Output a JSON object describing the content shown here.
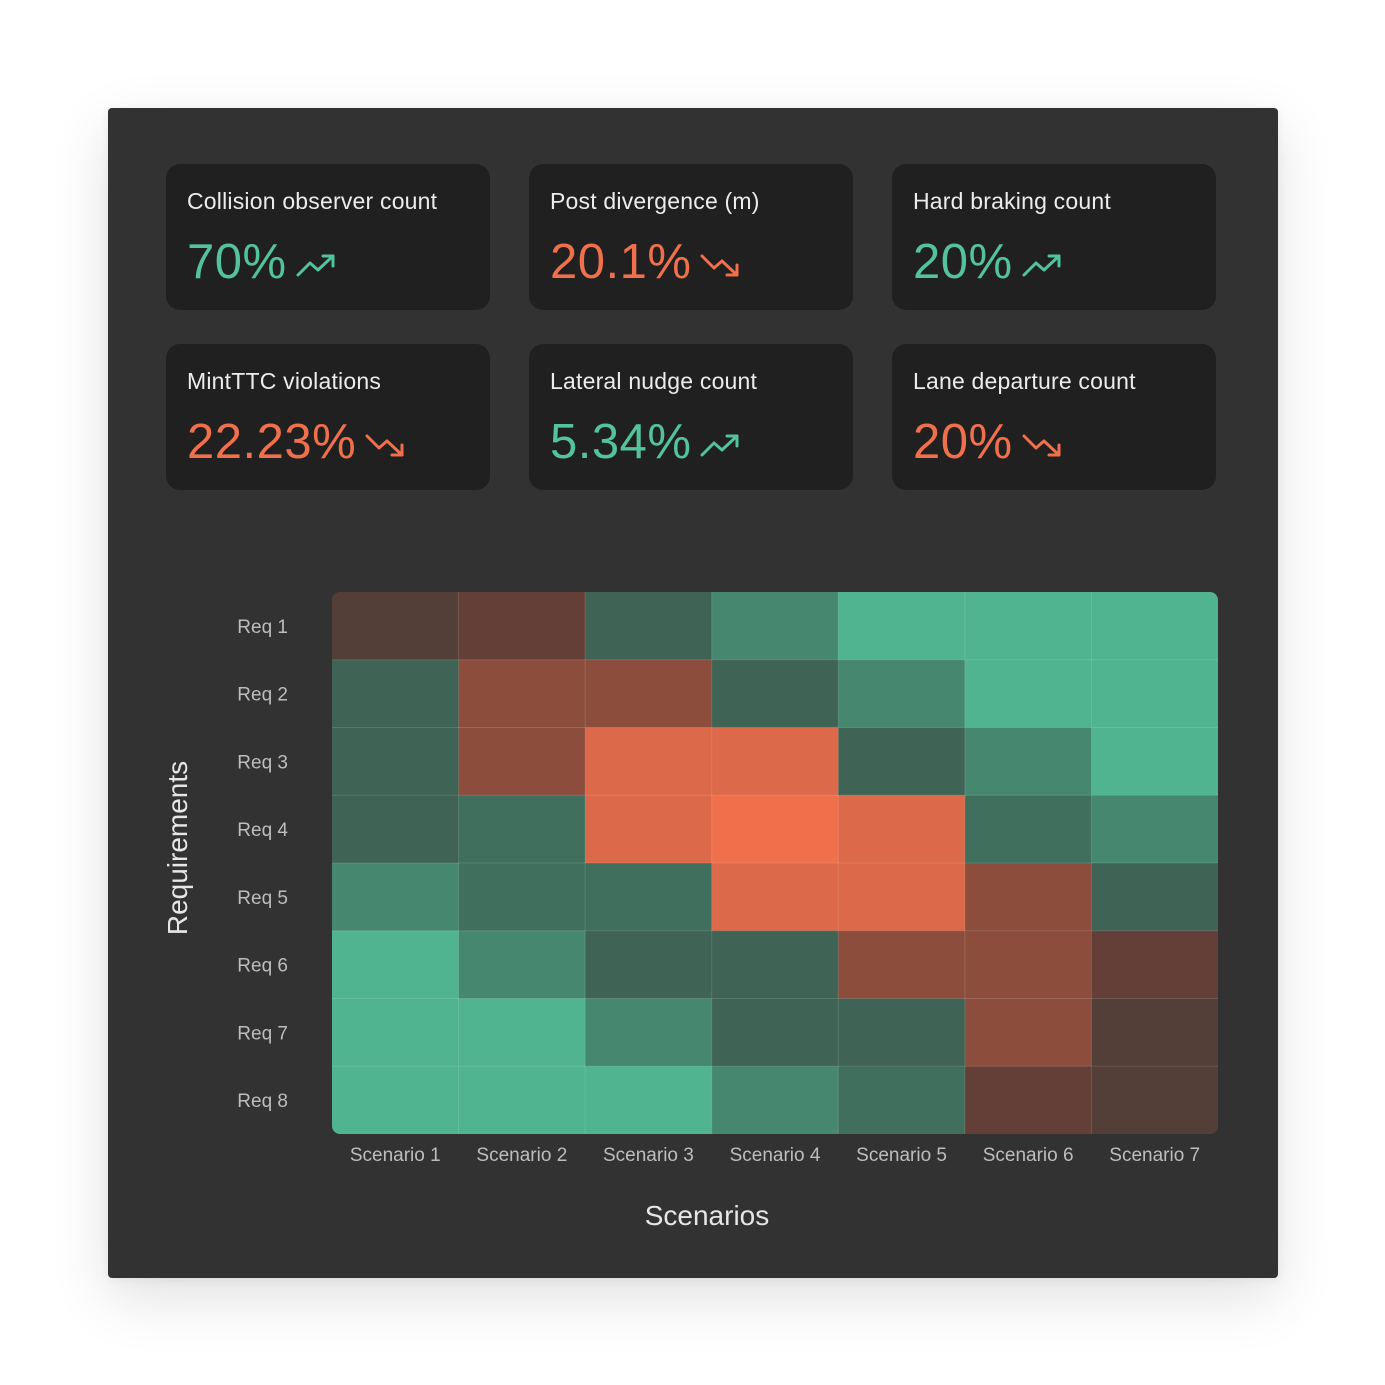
{
  "metrics": [
    {
      "title": "Collision observer count",
      "value": "70%",
      "trend": "up"
    },
    {
      "title": "Post divergence (m)",
      "value": "20.1%",
      "trend": "down"
    },
    {
      "title": "Hard braking count",
      "value": "20%",
      "trend": "up"
    },
    {
      "title": "MintTTC violations",
      "value": "22.23%",
      "trend": "down"
    },
    {
      "title": "Lateral nudge count",
      "value": "5.34%",
      "trend": "up"
    },
    {
      "title": "Lane departure count",
      "value": "20%",
      "trend": "down"
    }
  ],
  "colors": {
    "up": "#52c39a",
    "down": "#f0704c",
    "panel": "#323232",
    "card": "#202020"
  },
  "icons": {
    "up": "trend-up-icon",
    "down": "trend-down-icon"
  },
  "chart_data": {
    "type": "heatmap",
    "xlabel": "Scenarios",
    "ylabel": "Requirements",
    "x_categories": [
      "Scenario 1",
      "Scenario 2",
      "Scenario 3",
      "Scenario 4",
      "Scenario 5",
      "Scenario 6",
      "Scenario 7"
    ],
    "y_categories": [
      "Req 1",
      "Req 2",
      "Req 3",
      "Req 4",
      "Req 5",
      "Req 6",
      "Req 7",
      "Req 8"
    ],
    "values": [
      [
        0.2,
        0.3,
        -0.3,
        -0.6,
        -0.9,
        -0.9,
        -0.9
      ],
      [
        -0.3,
        0.5,
        0.5,
        -0.3,
        -0.6,
        -0.9,
        -0.9
      ],
      [
        -0.3,
        0.5,
        0.9,
        0.9,
        -0.3,
        -0.6,
        -0.9
      ],
      [
        -0.3,
        -0.4,
        0.9,
        1.0,
        0.9,
        -0.4,
        -0.6
      ],
      [
        -0.6,
        -0.4,
        -0.4,
        0.9,
        0.9,
        0.5,
        -0.3
      ],
      [
        -0.9,
        -0.6,
        -0.3,
        -0.3,
        0.5,
        0.5,
        0.3
      ],
      [
        -0.9,
        -0.9,
        -0.6,
        -0.3,
        -0.3,
        0.5,
        0.2
      ],
      [
        -0.9,
        -0.9,
        -0.9,
        -0.6,
        -0.4,
        0.3,
        0.2
      ]
    ],
    "value_range": [
      -1,
      1
    ],
    "color_scale": {
      "negative": "#52c39a",
      "neutral": "#3a4a42",
      "positive": "#f0704c"
    },
    "legend": "none",
    "grid": true
  }
}
